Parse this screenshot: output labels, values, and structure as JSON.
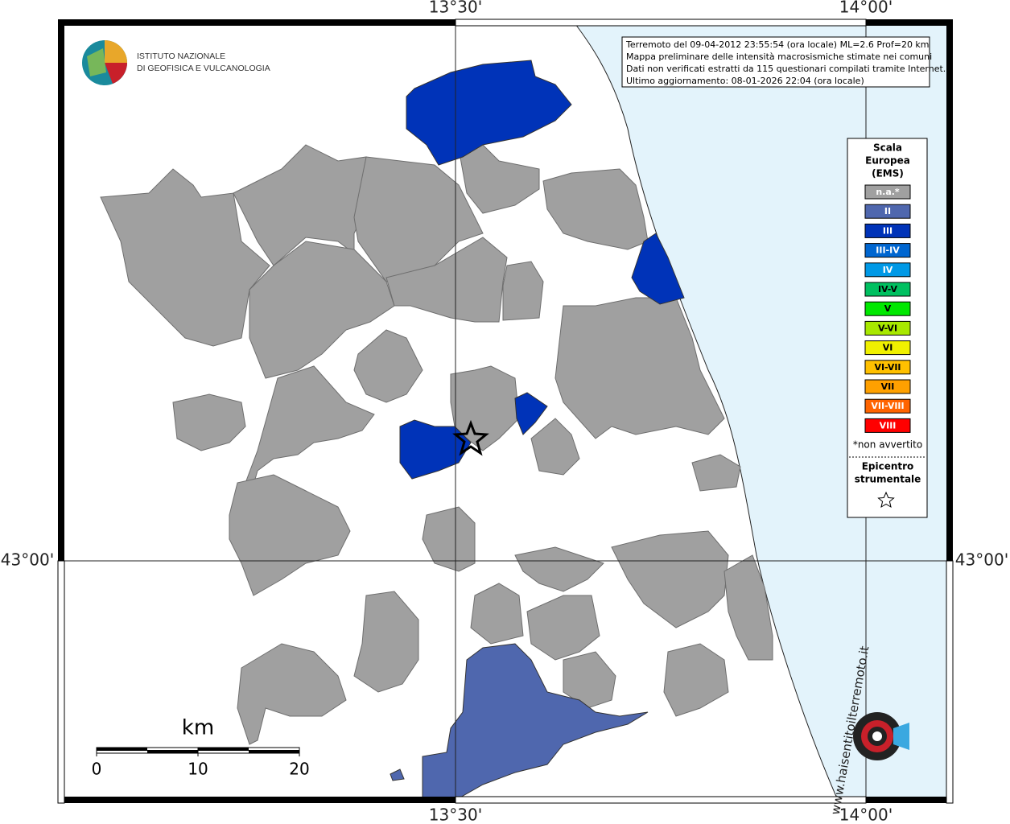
{
  "coordinate_labels": {
    "lon": [
      "13°30'",
      "14°00'"
    ],
    "lat": [
      "43°00'"
    ]
  },
  "info": [
    "Terremoto del 09-04-2012 23:55:54 (ora locale) ML=2.6 Prof=20 km",
    "Mappa preliminare delle intensità macrosismiche stimate nei comuni",
    "Dati non verificati estratti da 115 questionari compilati tramite Internet.",
    "Ultimo aggiornamento: 08-01-2026 22:04 (ora locale)"
  ],
  "logo": [
    "ISTITUTO NAZIONALE",
    "DI GEOFISICA E VULCANOLOGIA"
  ],
  "legend": {
    "title": [
      "Scala",
      "Europea",
      "(EMS)"
    ],
    "items": [
      {
        "label": "n.a.*",
        "color": "#a0a0a0"
      },
      {
        "label": "II",
        "color": "#4f67ae"
      },
      {
        "label": "III",
        "color": "#0033b8"
      },
      {
        "label": "III-IV",
        "color": "#0066d0"
      },
      {
        "label": "IV",
        "color": "#0099e6"
      },
      {
        "label": "IV-V",
        "color": "#00c060"
      },
      {
        "label": "V",
        "color": "#00e800"
      },
      {
        "label": "V-VI",
        "color": "#a8e800"
      },
      {
        "label": "VI",
        "color": "#f0f000"
      },
      {
        "label": "VI-VII",
        "color": "#ffc000"
      },
      {
        "label": "VII",
        "color": "#ffa000"
      },
      {
        "label": "VII-VIII",
        "color": "#ff6400"
      },
      {
        "label": "VIII",
        "color": "#ff0000"
      }
    ],
    "note": "*non avvertito",
    "epicenter": [
      "Epicentro",
      "strumentale"
    ]
  },
  "scale": {
    "unit": "km",
    "labels": [
      0,
      10,
      20
    ]
  },
  "watermark": "www.haisentitoilterremoto.it"
}
